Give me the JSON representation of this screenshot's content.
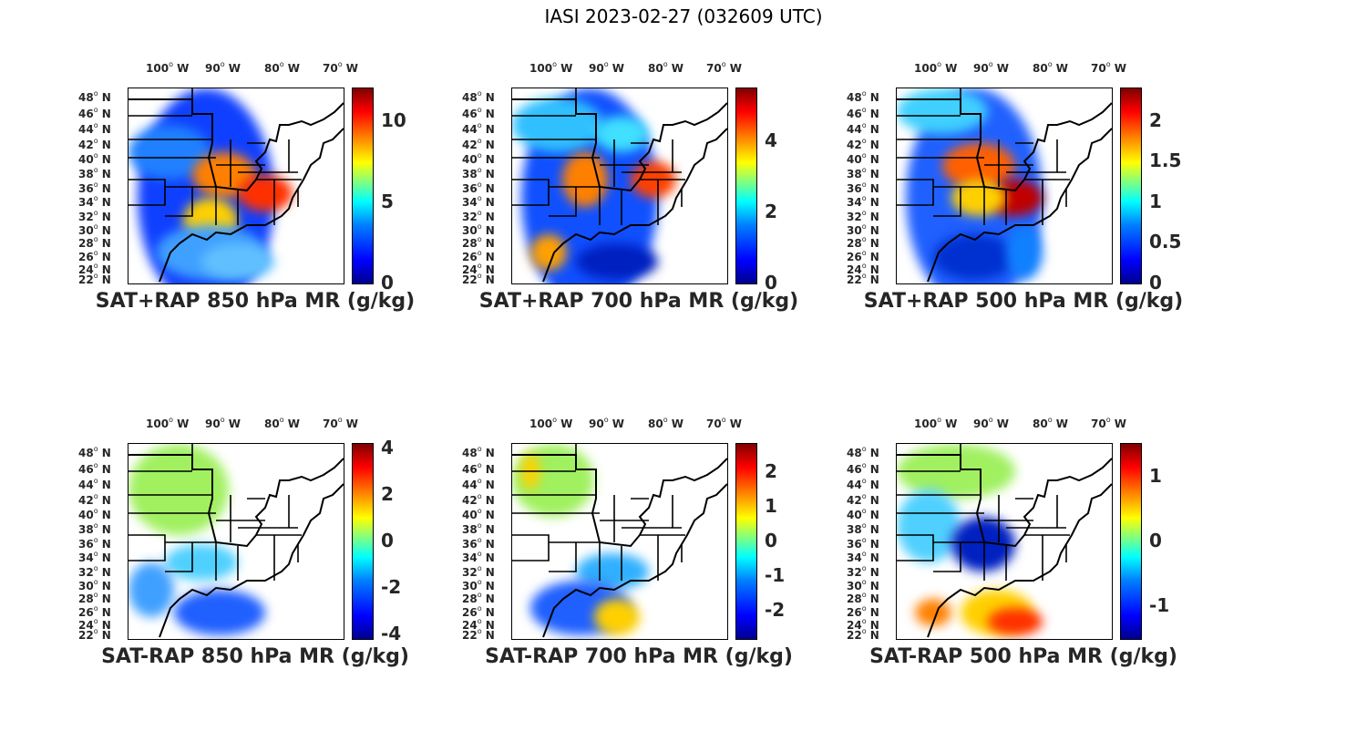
{
  "figure_title": "IASI 2023-02-27 (032609 UTC)",
  "lon_labels": [
    "100",
    "90",
    "80",
    "70"
  ],
  "lon_unit": "W",
  "lat_labels": [
    "48",
    "46",
    "44",
    "42",
    "40",
    "38",
    "36",
    "34",
    "32",
    "30",
    "28",
    "26",
    "24",
    "22"
  ],
  "lat_unit": "N",
  "colormap": "jet",
  "panels": [
    {
      "title": "SAT+RAP 850 hPa MR (g/kg)",
      "colorbar_ticks": [
        "0",
        "5",
        "10"
      ],
      "clim": [
        0,
        12
      ]
    },
    {
      "title": "SAT+RAP 700 hPa MR (g/kg)",
      "colorbar_ticks": [
        "0",
        "2",
        "4"
      ],
      "clim": [
        0,
        5.5
      ]
    },
    {
      "title": "SAT+RAP 500 hPa MR (g/kg)",
      "colorbar_ticks": [
        "0",
        "0.5",
        "1",
        "1.5",
        "2"
      ],
      "clim": [
        0,
        2.4
      ]
    },
    {
      "title": "SAT-RAP 850 hPa MR (g/kg)",
      "colorbar_ticks": [
        "-4",
        "-2",
        "0",
        "2",
        "4"
      ],
      "clim": [
        -4.2,
        4.2
      ]
    },
    {
      "title": "SAT-RAP 700 hPa MR (g/kg)",
      "colorbar_ticks": [
        "-2",
        "-1",
        "0",
        "1",
        "2"
      ],
      "clim": [
        -2.8,
        2.8
      ]
    },
    {
      "title": "SAT-RAP 500 hPa MR (g/kg)",
      "colorbar_ticks": [
        "-1",
        "0",
        "1"
      ],
      "clim": [
        -1.5,
        1.5
      ]
    }
  ]
}
